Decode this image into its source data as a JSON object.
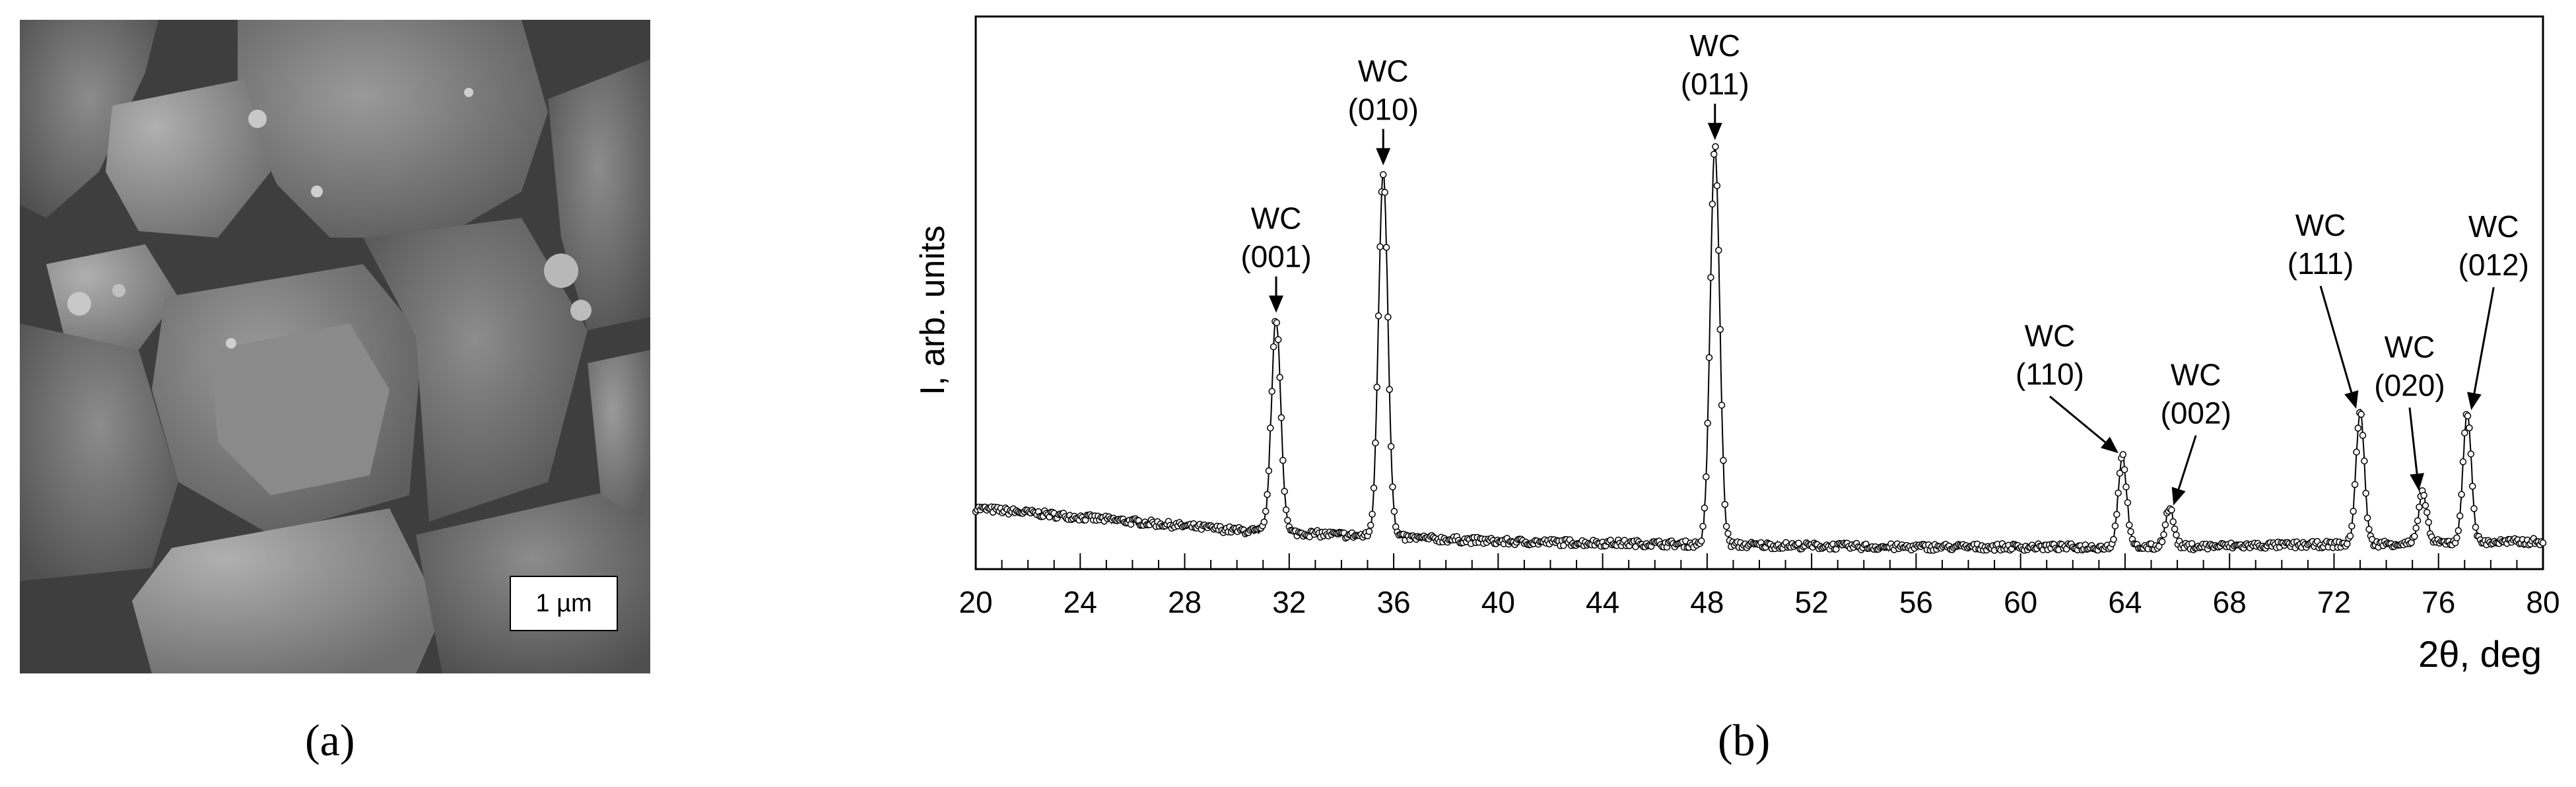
{
  "panels": {
    "a": {
      "label": "(a)",
      "scale_bar": "1 µm"
    },
    "b": {
      "label": "(b)"
    }
  },
  "chart_data": {
    "type": "line",
    "title": "",
    "xlabel": "2θ, deg",
    "ylabel": "I, arb. units",
    "xlim": [
      20,
      80
    ],
    "x_ticks": [
      20,
      24,
      28,
      32,
      36,
      40,
      44,
      48,
      52,
      56,
      60,
      64,
      68,
      72,
      76,
      80
    ],
    "grid": false,
    "baseline": [
      [
        20,
        0.11
      ],
      [
        30,
        0.07
      ],
      [
        40,
        0.05
      ],
      [
        55,
        0.04
      ],
      [
        65,
        0.04
      ],
      [
        80,
        0.05
      ]
    ],
    "peaks": [
      {
        "x": 31.5,
        "height": 0.385,
        "width": 0.18,
        "phase": "WC",
        "hkl": "(001)"
      },
      {
        "x": 35.6,
        "height": 0.66,
        "width": 0.18,
        "phase": "WC",
        "hkl": "(010)"
      },
      {
        "x": 48.3,
        "height": 0.72,
        "width": 0.18,
        "phase": "WC",
        "hkl": "(011)"
      },
      {
        "x": 63.9,
        "height": 0.165,
        "width": 0.16,
        "phase": "WC",
        "hkl": "(110)"
      },
      {
        "x": 65.7,
        "height": 0.07,
        "width": 0.16,
        "phase": "WC",
        "hkl": "(002)"
      },
      {
        "x": 73.0,
        "height": 0.24,
        "width": 0.16,
        "phase": "WC",
        "hkl": "(111)"
      },
      {
        "x": 75.4,
        "height": 0.09,
        "width": 0.16,
        "phase": "WC",
        "hkl": "(020)"
      },
      {
        "x": 77.1,
        "height": 0.235,
        "width": 0.16,
        "phase": "WC",
        "hkl": "(012)"
      }
    ],
    "colors": {
      "line": "#000000",
      "marker": "#ffffff"
    }
  }
}
